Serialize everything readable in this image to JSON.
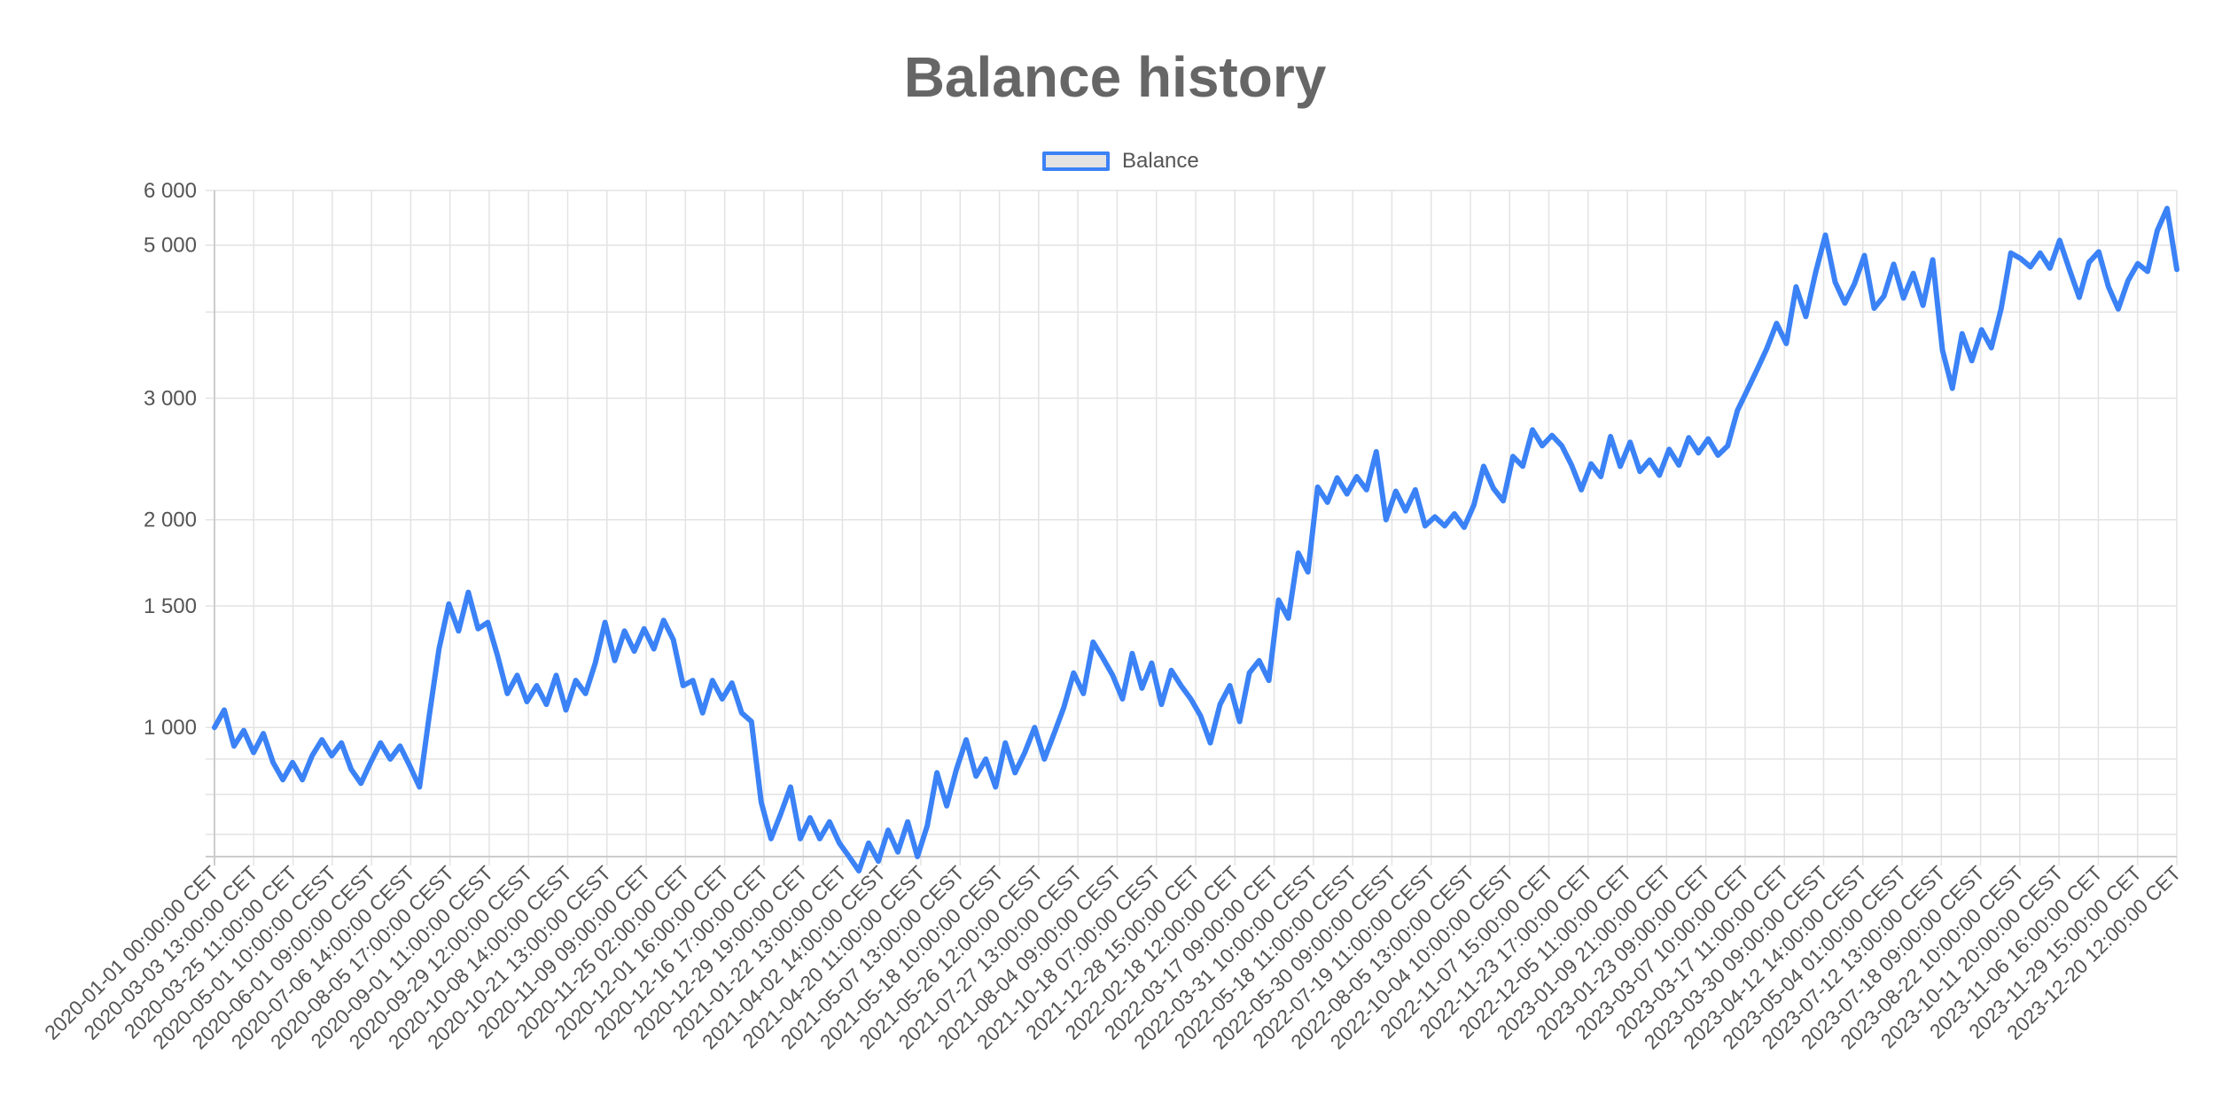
{
  "chart_data": {
    "type": "line",
    "title": "Balance history",
    "xlabel": "",
    "ylabel": "",
    "legend_position": "top-center",
    "grid": true,
    "y_scale": "log",
    "ylim": [
      650,
      6000
    ],
    "y_ticks": [
      {
        "value": 1000,
        "label": "1 000"
      },
      {
        "value": 1500,
        "label": "1 500"
      },
      {
        "value": 2000,
        "label": "2 000"
      },
      {
        "value": 3000,
        "label": "3 000"
      },
      {
        "value": 5000,
        "label": "5 000"
      },
      {
        "value": 6000,
        "label": "6 000"
      }
    ],
    "y_minor_gridlines": [
      700,
      800,
      900,
      4000
    ],
    "x_tick_labels": [
      "2020-01-01 00:00:00 CET",
      "2020-03-03 13:00:00 CET",
      "2020-03-25 11:00:00 CET",
      "2020-05-01 10:00:00 CEST",
      "2020-06-01 09:00:00 CEST",
      "2020-07-06 14:00:00 CEST",
      "2020-08-05 17:00:00 CEST",
      "2020-09-01 11:00:00 CEST",
      "2020-09-29 12:00:00 CEST",
      "2020-10-08 14:00:00 CEST",
      "2020-10-21 13:00:00 CEST",
      "2020-11-09 09:00:00 CET",
      "2020-11-25 02:00:00 CET",
      "2020-12-01 16:00:00 CET",
      "2020-12-16 17:00:00 CET",
      "2020-12-29 19:00:00 CET",
      "2021-01-22 13:00:00 CET",
      "2021-04-02 14:00:00 CEST",
      "2021-04-20 11:00:00 CEST",
      "2021-05-07 13:00:00 CEST",
      "2021-05-18 10:00:00 CEST",
      "2021-05-26 12:00:00 CEST",
      "2021-07-27 13:00:00 CEST",
      "2021-08-04 09:00:00 CEST",
      "2021-10-18 07:00:00 CEST",
      "2021-12-28 15:00:00 CET",
      "2022-02-18 12:00:00 CET",
      "2022-03-17 09:00:00 CET",
      "2022-03-31 10:00:00 CEST",
      "2022-05-18 11:00:00 CEST",
      "2022-05-30 09:00:00 CEST",
      "2022-07-19 11:00:00 CEST",
      "2022-08-05 13:00:00 CEST",
      "2022-10-04 10:00:00 CEST",
      "2022-11-07 15:00:00 CET",
      "2022-11-23 17:00:00 CET",
      "2022-12-05 11:00:00 CET",
      "2023-01-09 21:00:00 CET",
      "2023-01-23 09:00:00 CET",
      "2023-03-07 10:00:00 CET",
      "2023-03-17 11:00:00 CET",
      "2023-03-30 09:00:00 CEST",
      "2023-04-12 14:00:00 CEST",
      "2023-05-04 01:00:00 CEST",
      "2023-07-12 13:00:00 CEST",
      "2023-07-18 09:00:00 CEST",
      "2023-08-22 10:00:00 CEST",
      "2023-10-11 20:00:00 CEST",
      "2023-11-06 16:00:00 CET",
      "2023-11-29 15:00:00 CET",
      "2023-12-20 12:00:00 CET"
    ],
    "series": [
      {
        "name": "Balance",
        "color": "#3b82f6",
        "values": [
          1000,
          1060,
          940,
          990,
          920,
          980,
          890,
          840,
          890,
          840,
          910,
          960,
          910,
          950,
          870,
          830,
          890,
          950,
          900,
          940,
          880,
          820,
          1040,
          1300,
          1510,
          1380,
          1570,
          1390,
          1420,
          1270,
          1120,
          1190,
          1090,
          1150,
          1080,
          1190,
          1060,
          1170,
          1120,
          1240,
          1420,
          1250,
          1380,
          1290,
          1390,
          1300,
          1430,
          1340,
          1150,
          1170,
          1050,
          1170,
          1100,
          1160,
          1050,
          1020,
          780,
          690,
          750,
          820,
          690,
          740,
          690,
          730,
          680,
          650,
          620,
          680,
          640,
          710,
          660,
          730,
          650,
          720,
          860,
          770,
          870,
          960,
          850,
          900,
          820,
          950,
          860,
          920,
          1000,
          900,
          980,
          1070,
          1200,
          1120,
          1330,
          1260,
          1190,
          1100,
          1280,
          1140,
          1240,
          1080,
          1210,
          1150,
          1100,
          1040,
          950,
          1080,
          1150,
          1020,
          1200,
          1250,
          1170,
          1530,
          1440,
          1790,
          1680,
          2230,
          2120,
          2300,
          2180,
          2310,
          2210,
          2510,
          2000,
          2200,
          2060,
          2210,
          1960,
          2020,
          1960,
          2040,
          1950,
          2100,
          2390,
          2220,
          2130,
          2470,
          2390,
          2700,
          2560,
          2650,
          2560,
          2400,
          2210,
          2410,
          2310,
          2640,
          2390,
          2590,
          2350,
          2440,
          2320,
          2530,
          2400,
          2630,
          2500,
          2620,
          2480,
          2560,
          2880,
          3080,
          3300,
          3540,
          3850,
          3600,
          4350,
          3940,
          4560,
          5170,
          4420,
          4120,
          4400,
          4830,
          4050,
          4220,
          4690,
          4190,
          4550,
          4090,
          4760,
          3520,
          3100,
          3720,
          3400,
          3770,
          3550,
          4040,
          4870,
          4780,
          4650,
          4870,
          4630,
          5080,
          4610,
          4200,
          4720,
          4890,
          4350,
          4040,
          4440,
          4700,
          4580,
          5250,
          5650,
          4610
        ]
      }
    ]
  }
}
